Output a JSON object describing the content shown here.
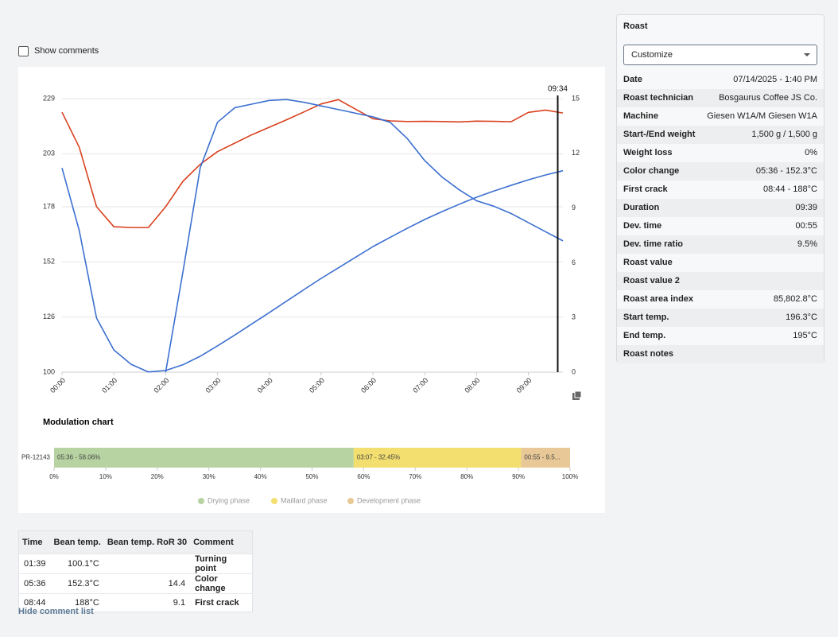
{
  "show_comments_label": "Show comments",
  "chart_data": [
    {
      "type": "line",
      "x": [
        0,
        20,
        40,
        60,
        80,
        100,
        120,
        140,
        160,
        180,
        200,
        220,
        240,
        260,
        280,
        300,
        320,
        340,
        360,
        380,
        400,
        420,
        440,
        460,
        480,
        500,
        520,
        540,
        560,
        580
      ],
      "series": [
        {
          "color": "#d9411e",
          "values": [
            222.6,
            206,
            178,
            168.6,
            168.2,
            168.2,
            178,
            190,
            198,
            204,
            208,
            212,
            215.5,
            219,
            222.7,
            226.5,
            228.5,
            224,
            219.5,
            218.5,
            218.2,
            218.3,
            218.2,
            218,
            218.4,
            218.3,
            218.1,
            222.5,
            223.6,
            222.2
          ]
        },
        {
          "color": "#3b6fd0",
          "values": [
            196.3,
            166.7,
            125.5,
            110.5,
            103.7,
            100.1,
            100.8,
            103.5,
            107.5,
            112.4,
            117.5,
            122.8,
            128.1,
            133.5,
            138.9,
            144.2,
            149.2,
            154.2,
            159.2,
            163.6,
            167.9,
            172,
            175.7,
            179.2,
            182.5,
            185.4,
            188.1,
            190.7,
            193,
            195
          ]
        },
        {
          "color": "#3b6fd0",
          "axis": "y2",
          "values": [
            null,
            null,
            null,
            null,
            null,
            null,
            0,
            5.5,
            11.2,
            13.7,
            14.5,
            14.7,
            14.9,
            14.95,
            14.8,
            14.6,
            14.4,
            14.2,
            14,
            13.7,
            12.8,
            11.6,
            10.7,
            10,
            9.4,
            9.1,
            8.7,
            8.2,
            7.7,
            7.2
          ]
        }
      ],
      "xlim": [
        0,
        580
      ],
      "xticks": [
        {
          "value": 0,
          "label": "00:00"
        },
        {
          "value": 60,
          "label": "01:00"
        },
        {
          "value": 120,
          "label": "02:00"
        },
        {
          "value": 180,
          "label": "03:00"
        },
        {
          "value": 240,
          "label": "04:00"
        },
        {
          "value": 300,
          "label": "05:00"
        },
        {
          "value": 360,
          "label": "06:00"
        },
        {
          "value": 420,
          "label": "07:00"
        },
        {
          "value": 480,
          "label": "08:00"
        },
        {
          "value": 540,
          "label": "09:00"
        }
      ],
      "ylim": [
        100,
        229
      ],
      "yticks": [
        100,
        126,
        152,
        178,
        203,
        229
      ],
      "y2lim": [
        0,
        15
      ],
      "y2ticks": [
        0,
        3,
        6,
        9,
        12,
        15
      ],
      "grid": true,
      "marker": {
        "x": 574,
        "label": "09:34"
      }
    },
    {
      "type": "bar",
      "orientation": "horizontal",
      "stacked": true,
      "title": "Modulation chart",
      "categories": [
        "PR-12143"
      ],
      "series": [
        {
          "name": "Drying phase",
          "color": "#b7d3a2",
          "values": [
            58.06
          ],
          "value_labels": [
            "05:36 - 58.06%"
          ]
        },
        {
          "name": "Maillard phase",
          "color": "#f3de70",
          "values": [
            32.45
          ],
          "value_labels": [
            "03:07 - 32.45%"
          ]
        },
        {
          "name": "Development phase",
          "color": "#e8c896",
          "values": [
            9.49
          ],
          "value_labels": [
            "00:55 - 9.5..."
          ]
        }
      ],
      "xlim": [
        0,
        100
      ],
      "xticks": [
        {
          "value": 0,
          "label": "0%"
        },
        {
          "value": 10,
          "label": "10%"
        },
        {
          "value": 20,
          "label": "20%"
        },
        {
          "value": 30,
          "label": "30%"
        },
        {
          "value": 40,
          "label": "40%"
        },
        {
          "value": 50,
          "label": "50%"
        },
        {
          "value": 60,
          "label": "60%"
        },
        {
          "value": 70,
          "label": "70%"
        },
        {
          "value": 80,
          "label": "80%"
        },
        {
          "value": 90,
          "label": "90%"
        },
        {
          "value": 100,
          "label": "100%"
        }
      ],
      "legend": "bottom"
    }
  ],
  "roast_panel": {
    "title": "Roast",
    "dropdown": "Customize",
    "rows": [
      {
        "label": "Date",
        "value": "07/14/2025 - 1:40 PM"
      },
      {
        "label": "Roast technician",
        "value": "Bosgaurus Coffee JS Co."
      },
      {
        "label": "Machine",
        "value": "Giesen W1A/M Giesen W1A"
      },
      {
        "label": "Start-/End weight",
        "value": "1,500 g / 1,500 g"
      },
      {
        "label": "Weight loss",
        "value": "0%"
      },
      {
        "label": "Color change",
        "value": "05:36 - 152.3°C"
      },
      {
        "label": "First crack",
        "value": "08:44 - 188°C"
      },
      {
        "label": "Duration",
        "value": "09:39"
      },
      {
        "label": "Dev. time",
        "value": "00:55"
      },
      {
        "label": "Dev. time ratio",
        "value": "9.5%"
      },
      {
        "label": "Roast value"
      },
      {
        "label": "Roast value 2"
      },
      {
        "label": "Roast area index",
        "value": "85,802.8°C"
      },
      {
        "label": "Start temp.",
        "value": "196.3°C"
      },
      {
        "label": "End temp.",
        "value": "195°C"
      },
      {
        "label": "Roast notes"
      }
    ]
  },
  "comment_table": {
    "headers": [
      "Time",
      "Bean temp.",
      "Bean temp. RoR 30",
      "Comment"
    ],
    "rows": [
      [
        "01:39",
        "100.1°C",
        null,
        "Turning point"
      ],
      [
        "05:36",
        "152.3°C",
        14.4,
        "Color change"
      ],
      [
        "08:44",
        "188°C",
        9.1,
        "First crack"
      ]
    ]
  },
  "hide_link": "Hide comment list"
}
